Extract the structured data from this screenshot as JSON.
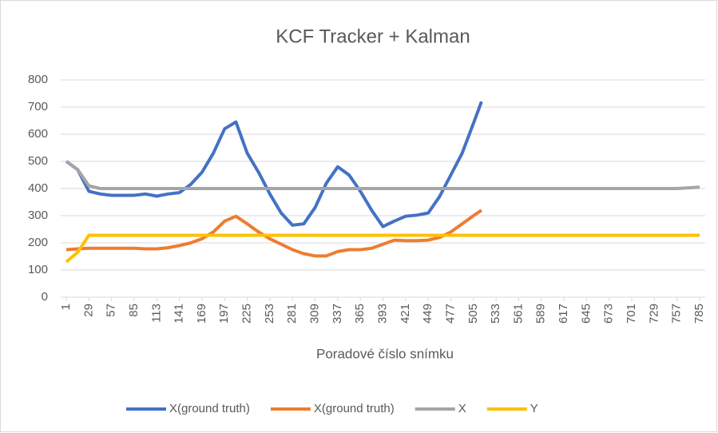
{
  "chart_data": {
    "type": "line",
    "title": "KCF Tracker + Kalman",
    "x_label": "Poradové číslo snímku",
    "x": [
      1,
      15,
      29,
      43,
      57,
      71,
      85,
      99,
      113,
      127,
      141,
      155,
      169,
      183,
      197,
      211,
      225,
      239,
      253,
      267,
      281,
      295,
      309,
      323,
      337,
      351,
      365,
      379,
      393,
      407,
      421,
      435,
      449,
      463,
      477,
      491,
      505,
      515,
      533,
      561,
      589,
      617,
      645,
      673,
      701,
      729,
      757,
      785
    ],
    "series": [
      {
        "name": "X(ground truth)",
        "color": "#4472c4",
        "values": [
          500,
          470,
          390,
          380,
          375,
          375,
          375,
          380,
          372,
          380,
          385,
          415,
          460,
          530,
          620,
          645,
          530,
          460,
          380,
          310,
          265,
          270,
          330,
          420,
          480,
          450,
          390,
          320,
          260,
          280,
          298,
          302,
          310,
          370,
          450,
          530,
          640,
          720,
          null,
          null,
          null,
          null,
          null,
          null,
          null,
          null,
          null,
          null
        ]
      },
      {
        "name": "X(ground truth)",
        "color": "#ed7d31",
        "values": [
          175,
          178,
          180,
          180,
          180,
          180,
          180,
          178,
          178,
          182,
          190,
          200,
          215,
          240,
          280,
          298,
          270,
          240,
          215,
          195,
          175,
          160,
          152,
          152,
          168,
          175,
          175,
          180,
          195,
          210,
          208,
          208,
          210,
          220,
          240,
          270,
          300,
          320,
          null,
          null,
          null,
          null,
          null,
          null,
          null,
          null,
          null,
          null
        ]
      },
      {
        "name": "X",
        "color": "#a5a5a5",
        "values": [
          500,
          470,
          410,
          400,
          400,
          400,
          400,
          400,
          400,
          400,
          400,
          400,
          400,
          400,
          400,
          400,
          400,
          400,
          400,
          400,
          400,
          400,
          400,
          400,
          400,
          400,
          400,
          400,
          400,
          400,
          400,
          400,
          400,
          400,
          400,
          400,
          400,
          400,
          400,
          400,
          400,
          400,
          400,
          400,
          400,
          400,
          400,
          405
        ]
      },
      {
        "name": "Y",
        "color": "#ffc000",
        "values": [
          130,
          165,
          228,
          228,
          228,
          228,
          228,
          228,
          228,
          228,
          228,
          228,
          228,
          228,
          228,
          228,
          228,
          228,
          228,
          228,
          228,
          228,
          228,
          228,
          228,
          228,
          228,
          228,
          228,
          228,
          228,
          228,
          228,
          228,
          228,
          228,
          228,
          228,
          228,
          228,
          228,
          228,
          228,
          228,
          228,
          228,
          228,
          228
        ]
      }
    ],
    "xlim": [
      1,
      785
    ],
    "xticks": [
      1,
      29,
      57,
      85,
      113,
      141,
      169,
      197,
      225,
      253,
      281,
      309,
      337,
      365,
      393,
      421,
      449,
      477,
      505,
      533,
      561,
      589,
      617,
      645,
      673,
      701,
      729,
      757,
      785
    ],
    "ylim": [
      0,
      800
    ],
    "yticks": [
      0,
      100,
      200,
      300,
      400,
      500,
      600,
      700,
      800
    ],
    "grid": true,
    "legend": "bottom"
  }
}
